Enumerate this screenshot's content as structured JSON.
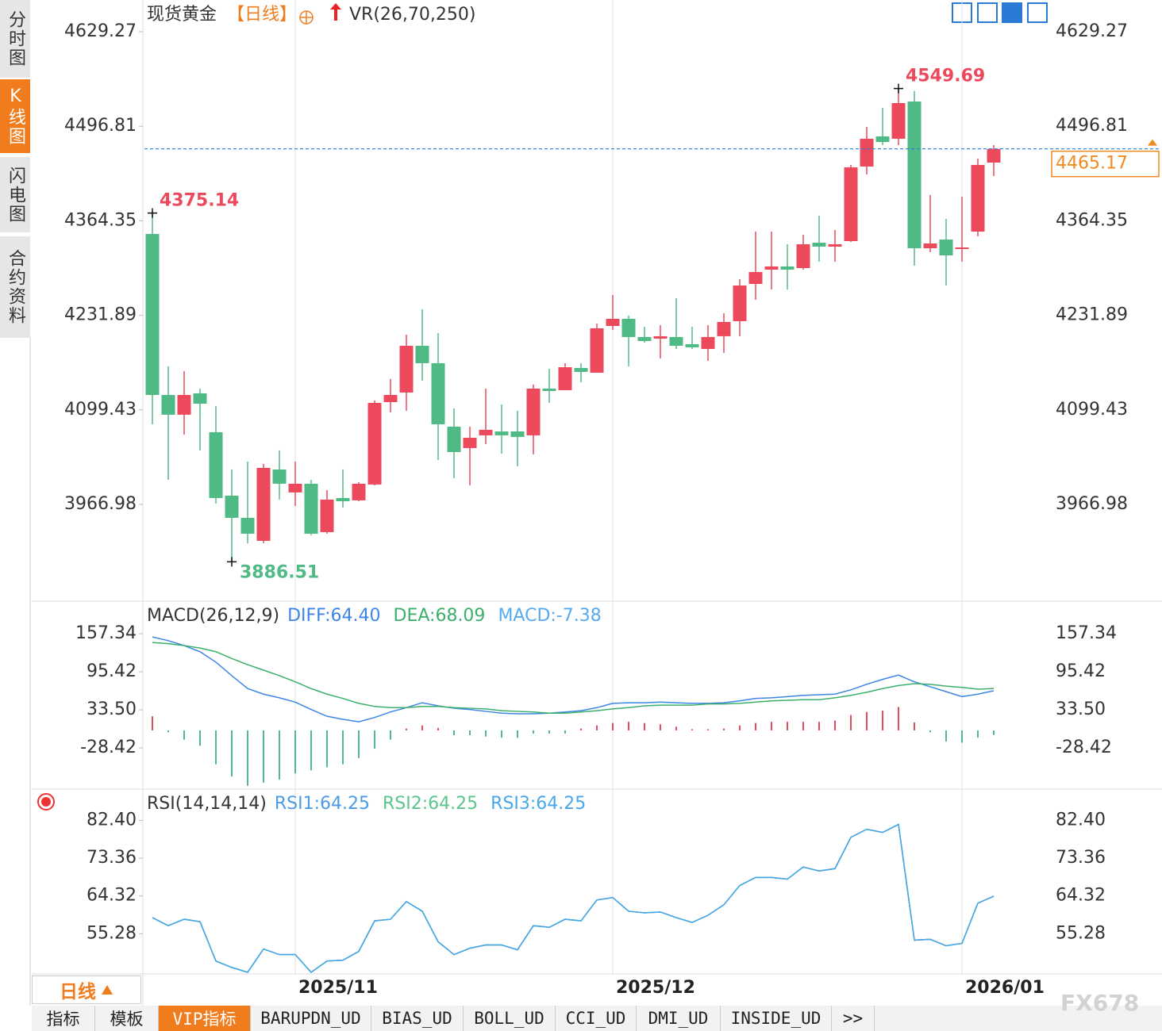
{
  "sidebar": [
    "分时图",
    "K线图",
    "闪电图",
    "合约资料"
  ],
  "period_button": "日线",
  "tabs": [
    "指标",
    "模板",
    "VIP指标",
    "BARUPDN_UD",
    "BIAS_UD",
    "BOLL_UD",
    "CCI_UD",
    "DMI_UD",
    "INSIDE_UD",
    ">>"
  ],
  "watermark": "FX678",
  "chart_data": [
    {
      "type": "candlestick",
      "title": "现货黄金",
      "subtitle": "【日线】",
      "indicator": "VR(26,70,250)",
      "categories": [
        null,
        null,
        null,
        null,
        null,
        null,
        null,
        null,
        null,
        "2025/11",
        null,
        null,
        null,
        null,
        null,
        null,
        null,
        null,
        null,
        null,
        null,
        null,
        null,
        null,
        null,
        null,
        null,
        null,
        null,
        "2025/12",
        null,
        null,
        null,
        null,
        null,
        null,
        null,
        null,
        null,
        null,
        null,
        null,
        null,
        null,
        null,
        null,
        null,
        null,
        null,
        null,
        null,
        "2026/01",
        null,
        null
      ],
      "open": [
        4345.9,
        4120.3,
        4092.6,
        4122.6,
        4068.1,
        3979.2,
        3948.1,
        3915.9,
        4015.9,
        3983.7,
        3995.9,
        3928.1,
        3975.9,
        3972.6,
        3994.8,
        4110.3,
        4123.7,
        4189.2,
        4164.8,
        4075.9,
        4045.9,
        4063.7,
        4069.2,
        4069.2,
        4063.7,
        4129.2,
        4127.0,
        4158.1,
        4151.5,
        4217.0,
        4227.0,
        4201.5,
        4199.2,
        4201.5,
        4191.5,
        4184.8,
        4202.6,
        4223.7,
        4275.9,
        4295.9,
        4300.4,
        4298.1,
        4333.7,
        4328.1,
        4335.9,
        4440.4,
        4482.6,
        4479.3,
        4531.5,
        4325.9,
        4338.1,
        4324.8,
        4349.2,
        4445.9
      ],
      "high": [
        4375.14,
        4160.3,
        4153.7,
        4129.2,
        4104.8,
        4015.9,
        4027.0,
        4023.7,
        4042.6,
        4027.0,
        4001.4,
        3987.0,
        4015.9,
        3998.1,
        4112.6,
        4142.6,
        4204.8,
        4240.4,
        4207.0,
        4101.5,
        4075.9,
        4129.2,
        4107.0,
        4098.1,
        4134.8,
        4157.0,
        4164.8,
        4164.8,
        4220.4,
        4260.4,
        4231.5,
        4215.9,
        4218.1,
        4255.9,
        4215.9,
        4218.1,
        4234.8,
        4282.6,
        4349.2,
        4349.2,
        4331.5,
        4344.8,
        4371.5,
        4351.5,
        4442.6,
        4495.9,
        4522.6,
        4549.69,
        4545.9,
        4400.4,
        4367.0,
        4398.1,
        4451.5,
        4470.4
      ],
      "low": [
        4079.2,
        4001.4,
        4064.8,
        4042.6,
        3968.1,
        3886.51,
        3912.6,
        3912.6,
        3973.7,
        3964.8,
        3923.7,
        3925.9,
        3962.6,
        3971.4,
        3993.7,
        4095.9,
        4098.1,
        4140.3,
        4029.2,
        4003.7,
        3993.7,
        4051.5,
        4038.1,
        4020.3,
        4037.0,
        4109.2,
        4127.0,
        4138.1,
        4151.5,
        4211.5,
        4160.3,
        4193.7,
        4171.5,
        4184.8,
        4184.8,
        4168.1,
        4179.2,
        4202.6,
        4253.7,
        4268.1,
        4268.1,
        4295.9,
        4307.0,
        4307.0,
        4334.8,
        4429.3,
        4470.4,
        4470.4,
        4301.5,
        4320.4,
        4273.7,
        4307.0,
        4342.6,
        4427.0
      ],
      "close": [
        4120.3,
        4092.6,
        4120.3,
        4108.1,
        3975.9,
        3948.1,
        3925.9,
        4018.1,
        3995.9,
        3995.9,
        3925.9,
        3973.7,
        3971.4,
        3995.9,
        4109.2,
        4120.3,
        4189.2,
        4164.8,
        4079.2,
        4040.3,
        4060.3,
        4071.5,
        4063.7,
        4061.5,
        4129.2,
        4125.9,
        4159.2,
        4152.6,
        4213.7,
        4227.0,
        4201.5,
        4195.9,
        4202.6,
        4189.2,
        4187.0,
        4201.5,
        4222.6,
        4273.7,
        4292.6,
        4300.4,
        4295.9,
        4331.5,
        4328.1,
        4331.5,
        4439.3,
        4479.3,
        4474.8,
        4529.3,
        4325.9,
        4332.6,
        4315.9,
        4327.0,
        4442.6,
        4465.17
      ],
      "high_labels": [
        "4375.14",
        null,
        null,
        null,
        null,
        null,
        null,
        null,
        null,
        null,
        null,
        null,
        null,
        null,
        null,
        null,
        null,
        null,
        null,
        null,
        null,
        null,
        null,
        null,
        null,
        null,
        null,
        null,
        null,
        null,
        null,
        null,
        null,
        null,
        null,
        null,
        null,
        null,
        null,
        null,
        null,
        null,
        null,
        null,
        null,
        null,
        null,
        "4549.69",
        null,
        null,
        null,
        null,
        null,
        null
      ],
      "low_labels": [
        null,
        null,
        null,
        null,
        null,
        "3886.51",
        null,
        null,
        null,
        null,
        null,
        null,
        null,
        null,
        null,
        null,
        null,
        null,
        null,
        null,
        null,
        null,
        null,
        null,
        null,
        null,
        null,
        null,
        null,
        null,
        null,
        null,
        null,
        null,
        null,
        null,
        null,
        null,
        null,
        null,
        null,
        null,
        null,
        null,
        null,
        null,
        null,
        null,
        null,
        null,
        null,
        null,
        null,
        null
      ],
      "up_color": "#ec4a5c",
      "down_color": "#50ba86",
      "last_price_color": "#1e7fe6",
      "last_price_box_color": "#f08a1e",
      "ylim": [
        3832.5,
        4673.72
      ],
      "yticks": [
        4629.27,
        4496.81,
        4364.35,
        4231.89,
        4099.43,
        3966.98
      ]
    },
    {
      "type": "macd",
      "title": "MACD(26,12,9)",
      "series": [
        {
          "name": "DIFF:64.40",
          "color": "#3d85e6",
          "style": "line",
          "values": [
            152,
            146,
            138,
            128,
            111,
            89,
            68,
            59,
            53,
            46,
            34,
            23,
            18,
            14,
            21,
            30,
            37,
            45,
            40,
            36,
            34,
            31,
            28,
            27,
            27,
            28,
            30,
            32,
            37,
            44,
            45,
            45,
            46,
            45,
            44,
            44,
            45,
            48,
            52,
            53,
            55,
            57,
            58,
            59,
            66,
            75,
            83,
            90,
            79,
            71,
            63,
            55,
            59,
            64.4
          ]
        },
        {
          "name": "DEA:68.09",
          "color": "#3cb06a",
          "style": "line",
          "values": [
            143,
            141,
            138,
            134,
            128,
            117,
            107,
            98,
            89,
            79,
            68,
            59,
            52,
            44,
            39,
            37,
            37,
            39,
            39,
            37,
            36,
            35,
            32,
            31,
            30,
            28,
            28,
            30,
            32,
            35,
            37,
            40,
            41,
            41,
            41,
            43,
            43,
            44,
            46,
            48,
            49,
            50,
            50,
            53,
            57,
            62,
            68,
            73,
            76,
            75,
            72,
            70,
            67,
            68.09
          ]
        },
        {
          "name": "MACD:-7.38",
          "color": "#55aaf0",
          "style": "bar",
          "values": [
            23,
            -3,
            -15,
            -25,
            -55,
            -75,
            -90,
            -85,
            -80,
            -70,
            -65,
            -60,
            -55,
            -45,
            -30,
            -15,
            3,
            8,
            4,
            -8,
            -8,
            -10,
            -12,
            -12,
            -5,
            -5,
            -5,
            3,
            8,
            12,
            14,
            12,
            10,
            6,
            2,
            2,
            3,
            8,
            12,
            14,
            14,
            14,
            14,
            16,
            25,
            30,
            32,
            38,
            13,
            -3,
            -18,
            -20,
            -12,
            -7.38
          ]
        }
      ],
      "bar_up_color": "#ec4a5c",
      "bar_down_color": "#50ba86",
      "ylim": [
        -92.92,
        207.65
      ],
      "yticks": [
        157.34,
        95.42,
        {
          "value": 33.5,
          "label": "33.50"
        },
        -28.42
      ]
    },
    {
      "type": "line",
      "title": "RSI(14,14,14)",
      "series": [
        {
          "name": "RSI1:64.25",
          "color": "#4b9be6",
          "values": [
            59.13,
            57.21,
            58.75,
            58.17,
            48.75,
            47.21,
            46.06,
            51.63,
            50.29,
            50.29,
            46.06,
            48.75,
            48.94,
            51.05,
            58.36,
            58.75,
            62.98,
            60.67,
            53.36,
            50.29,
            51.82,
            52.59,
            52.59,
            51.44,
            57.21,
            56.82,
            58.75,
            58.36,
            63.36,
            63.94,
            60.67,
            60.29,
            60.48,
            59.13,
            57.98,
            59.71,
            62.21,
            66.82,
            68.75,
            68.75,
            68.36,
            71.25,
            70.29,
            70.86,
            78.36,
            80.28,
            79.52,
            81.44,
            53.75,
            53.94,
            52.4,
            52.98,
            62.59,
            64.25
          ]
        },
        {
          "name": "RSI2:64.25",
          "color": "#5cc48d",
          "values": [
            59.13,
            57.21,
            58.75,
            58.17,
            48.75,
            47.21,
            46.06,
            51.63,
            50.29,
            50.29,
            46.06,
            48.75,
            48.94,
            51.05,
            58.36,
            58.75,
            62.98,
            60.67,
            53.36,
            50.29,
            51.82,
            52.59,
            52.59,
            51.44,
            57.21,
            56.82,
            58.75,
            58.36,
            63.36,
            63.94,
            60.67,
            60.29,
            60.48,
            59.13,
            57.98,
            59.71,
            62.21,
            66.82,
            68.75,
            68.75,
            68.36,
            71.25,
            70.29,
            70.86,
            78.36,
            80.28,
            79.52,
            81.44,
            53.75,
            53.94,
            52.4,
            52.98,
            62.59,
            64.25
          ]
        },
        {
          "name": "RSI3:64.25",
          "color": "#48a6ea",
          "values": [
            59.13,
            57.21,
            58.75,
            58.17,
            48.75,
            47.21,
            46.06,
            51.63,
            50.29,
            50.29,
            46.06,
            48.75,
            48.94,
            51.05,
            58.36,
            58.75,
            62.98,
            60.67,
            53.36,
            50.29,
            51.82,
            52.59,
            52.59,
            51.44,
            57.21,
            56.82,
            58.75,
            58.36,
            63.36,
            63.94,
            60.67,
            60.29,
            60.48,
            59.13,
            57.98,
            59.71,
            62.21,
            66.82,
            68.75,
            68.75,
            68.36,
            71.25,
            70.29,
            70.86,
            78.36,
            80.28,
            79.52,
            81.44,
            53.75,
            53.94,
            52.4,
            52.98,
            62.59,
            64.25
          ]
        }
      ],
      "ylim": [
        45.67,
        89.51
      ],
      "yticks": [
        {
          "value": 82.4,
          "label": "82.40"
        },
        73.36,
        64.32,
        55.28
      ]
    }
  ]
}
